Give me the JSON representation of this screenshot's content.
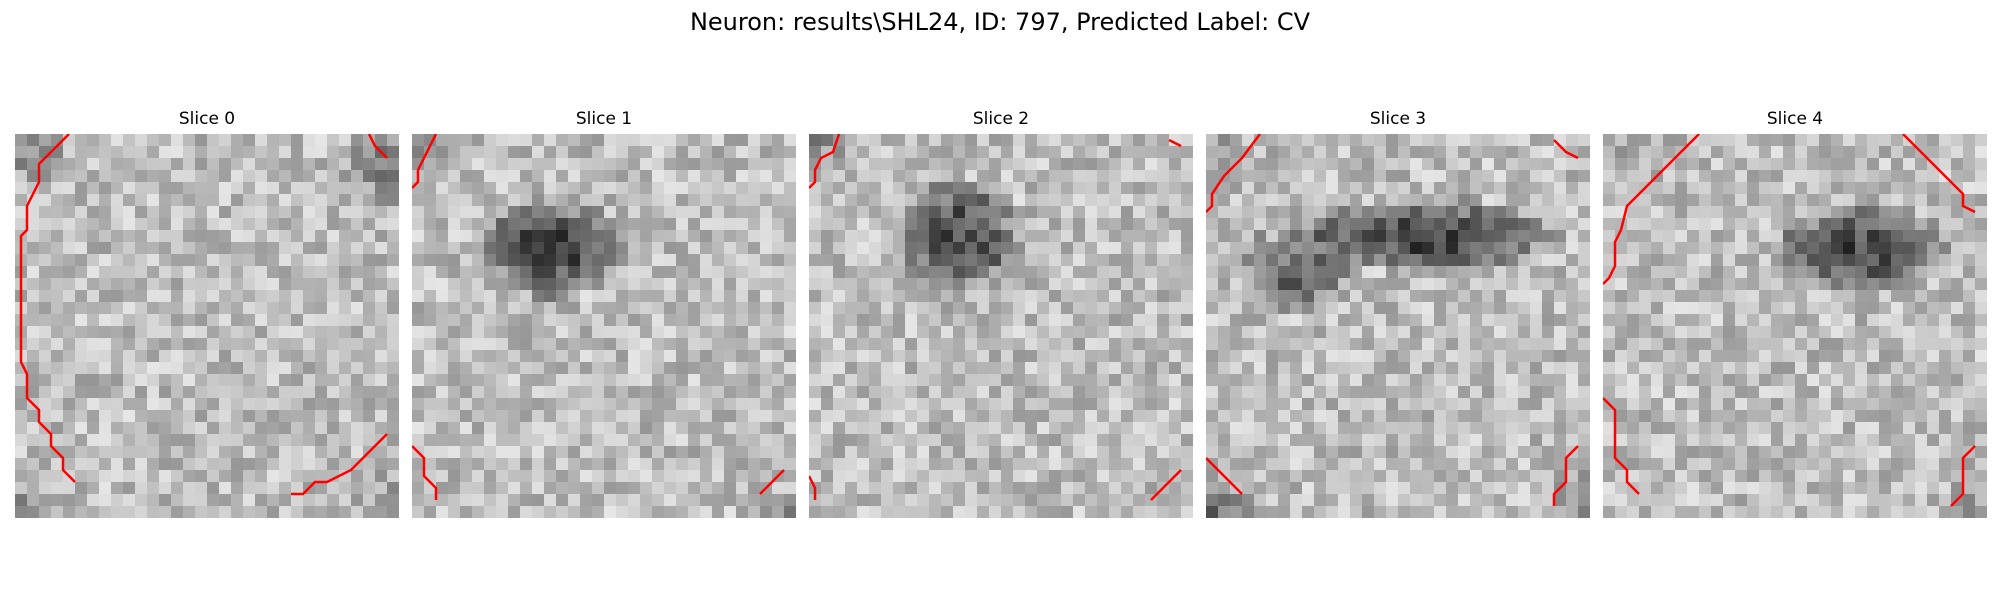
{
  "figure": {
    "title": "Neuron: results\\SHL24, ID: 797, Predicted Label: CV"
  },
  "slices": [
    {
      "title": "Slice 0"
    },
    {
      "title": "Slice 1"
    },
    {
      "title": "Slice 2"
    },
    {
      "title": "Slice 3"
    },
    {
      "title": "Slice 4"
    }
  ],
  "colors": {
    "contour": "#ff0000",
    "background": "#ffffff"
  }
}
